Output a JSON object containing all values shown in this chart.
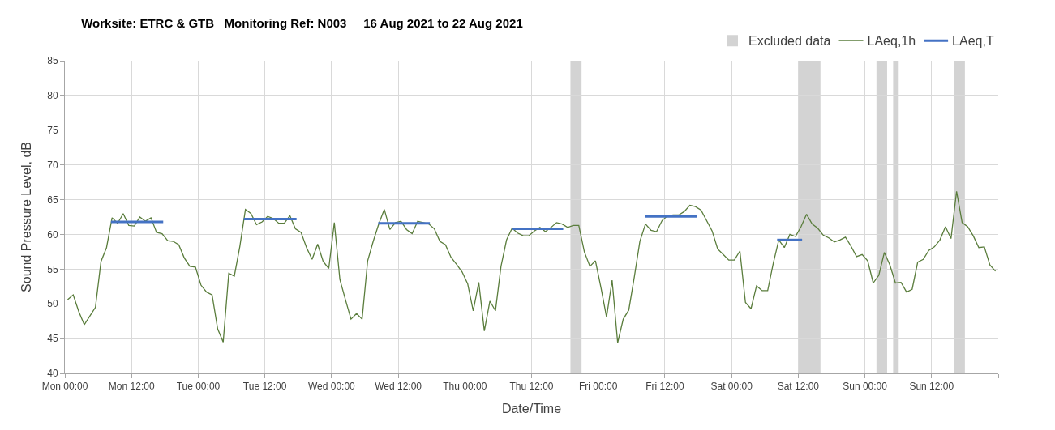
{
  "chart_data": {
    "type": "line",
    "title": "Worksite: ETRC & GTB   Monitoring Ref: N003     16 Aug 2021 to 22 Aug 2021",
    "xlabel": "Date/Time",
    "ylabel": "Sound Pressure Level, dB",
    "xlim": [
      "2021-08-16T00:00",
      "2021-08-23T00:00"
    ],
    "ylim": [
      40,
      85
    ],
    "xticks": [
      {
        "value": "2021-08-16T00:00",
        "label": "Mon 00:00"
      },
      {
        "value": "2021-08-16T12:00",
        "label": "Mon 12:00"
      },
      {
        "value": "2021-08-17T00:00",
        "label": "Tue 00:00"
      },
      {
        "value": "2021-08-17T12:00",
        "label": "Tue 12:00"
      },
      {
        "value": "2021-08-18T00:00",
        "label": "Wed 00:00"
      },
      {
        "value": "2021-08-18T12:00",
        "label": "Wed 12:00"
      },
      {
        "value": "2021-08-19T00:00",
        "label": "Thu 00:00"
      },
      {
        "value": "2021-08-19T12:00",
        "label": "Thu 12:00"
      },
      {
        "value": "2021-08-20T00:00",
        "label": "Fri 00:00"
      },
      {
        "value": "2021-08-20T12:00",
        "label": "Fri 12:00"
      },
      {
        "value": "2021-08-21T00:00",
        "label": "Sat 00:00"
      },
      {
        "value": "2021-08-21T12:00",
        "label": "Sat 12:00"
      },
      {
        "value": "2021-08-22T00:00",
        "label": "Sun 00:00"
      },
      {
        "value": "2021-08-22T12:00",
        "label": "Sun 12:00"
      },
      {
        "value": "2021-08-23T00:00",
        "label": null
      }
    ],
    "yticks": [
      40,
      45,
      50,
      55,
      60,
      65,
      70,
      75,
      80,
      85
    ],
    "grid": true,
    "legend": "top right",
    "marker": "none",
    "line_style": "solid",
    "bands": [
      {
        "axis": "x",
        "from": "2021-08-19T19:00",
        "to": "2021-08-19T21:00",
        "label": "Excluded data",
        "color": "#d3d3d3"
      },
      {
        "axis": "x",
        "from": "2021-08-21T12:00",
        "to": "2021-08-21T16:00",
        "color": "#d3d3d3"
      },
      {
        "axis": "x",
        "from": "2021-08-22T02:05",
        "to": "2021-08-22T04:00",
        "color": "#d3d3d3"
      },
      {
        "axis": "x",
        "from": "2021-08-22T05:05",
        "to": "2021-08-22T06:05",
        "color": "#d3d3d3"
      },
      {
        "axis": "x",
        "from": "2021-08-22T16:05",
        "to": "2021-08-22T18:00",
        "color": "#d3d3d3"
      }
    ],
    "series": [
      {
        "name": "LAeq,1h",
        "color": "#5a7d3c",
        "x": [
          "2021-08-16T00:30",
          "2021-08-16T01:30",
          "2021-08-16T02:30",
          "2021-08-16T03:30",
          "2021-08-16T05:30",
          "2021-08-16T06:30",
          "2021-08-16T07:30",
          "2021-08-16T08:30",
          "2021-08-16T09:30",
          "2021-08-16T10:30",
          "2021-08-16T11:30",
          "2021-08-16T12:30",
          "2021-08-16T13:30",
          "2021-08-16T14:30",
          "2021-08-16T15:30",
          "2021-08-16T16:30",
          "2021-08-16T17:30",
          "2021-08-16T18:30",
          "2021-08-16T19:30",
          "2021-08-16T20:30",
          "2021-08-16T21:30",
          "2021-08-16T22:30",
          "2021-08-16T23:30",
          "2021-08-17T00:30",
          "2021-08-17T01:30",
          "2021-08-17T02:30",
          "2021-08-17T03:30",
          "2021-08-17T04:30",
          "2021-08-17T05:30",
          "2021-08-17T06:30",
          "2021-08-17T07:30",
          "2021-08-17T08:30",
          "2021-08-17T09:30",
          "2021-08-17T10:30",
          "2021-08-17T11:30",
          "2021-08-17T12:30",
          "2021-08-17T13:30",
          "2021-08-17T14:30",
          "2021-08-17T15:30",
          "2021-08-17T16:30",
          "2021-08-17T17:30",
          "2021-08-17T18:30",
          "2021-08-17T19:30",
          "2021-08-17T20:30",
          "2021-08-17T21:30",
          "2021-08-17T22:30",
          "2021-08-17T23:30",
          "2021-08-18T00:30",
          "2021-08-18T01:30",
          "2021-08-18T02:30",
          "2021-08-18T03:30",
          "2021-08-18T04:30",
          "2021-08-18T05:30",
          "2021-08-18T06:30",
          "2021-08-18T07:30",
          "2021-08-18T08:30",
          "2021-08-18T09:30",
          "2021-08-18T10:30",
          "2021-08-18T11:30",
          "2021-08-18T12:30",
          "2021-08-18T13:30",
          "2021-08-18T14:30",
          "2021-08-18T15:30",
          "2021-08-18T16:30",
          "2021-08-18T17:30",
          "2021-08-18T18:30",
          "2021-08-18T19:30",
          "2021-08-18T20:30",
          "2021-08-18T21:30",
          "2021-08-18T22:30",
          "2021-08-18T23:30",
          "2021-08-19T00:30",
          "2021-08-19T01:30",
          "2021-08-19T02:30",
          "2021-08-19T03:30",
          "2021-08-19T04:30",
          "2021-08-19T05:30",
          "2021-08-19T06:30",
          "2021-08-19T07:30",
          "2021-08-19T08:30",
          "2021-08-19T09:30",
          "2021-08-19T10:30",
          "2021-08-19T11:30",
          "2021-08-19T12:30",
          "2021-08-19T13:30",
          "2021-08-19T14:30",
          "2021-08-19T15:30",
          "2021-08-19T16:30",
          "2021-08-19T17:30",
          "2021-08-19T18:30",
          "2021-08-19T19:30",
          "2021-08-19T20:30",
          "2021-08-19T21:30",
          "2021-08-19T22:30",
          "2021-08-19T23:30",
          "2021-08-20T00:30",
          "2021-08-20T01:30",
          "2021-08-20T02:30",
          "2021-08-20T03:30",
          "2021-08-20T04:30",
          "2021-08-20T05:30",
          "2021-08-20T06:30",
          "2021-08-20T07:30",
          "2021-08-20T08:30",
          "2021-08-20T09:30",
          "2021-08-20T10:30",
          "2021-08-20T11:30",
          "2021-08-20T12:30",
          "2021-08-20T13:30",
          "2021-08-20T14:30",
          "2021-08-20T15:30",
          "2021-08-20T16:30",
          "2021-08-20T17:30",
          "2021-08-20T18:30",
          "2021-08-20T19:30",
          "2021-08-20T20:30",
          "2021-08-20T21:30",
          "2021-08-20T22:30",
          "2021-08-20T23:30",
          "2021-08-21T00:30",
          "2021-08-21T01:30",
          "2021-08-21T02:30",
          "2021-08-21T03:30",
          "2021-08-21T04:30",
          "2021-08-21T05:30",
          "2021-08-21T06:30",
          "2021-08-21T07:30",
          "2021-08-21T08:30",
          "2021-08-21T09:30",
          "2021-08-21T10:30",
          "2021-08-21T11:30",
          "2021-08-21T12:30",
          "2021-08-21T13:30",
          "2021-08-21T14:30",
          "2021-08-21T15:30",
          "2021-08-21T16:30",
          "2021-08-21T17:30",
          "2021-08-21T18:30",
          "2021-08-21T19:30",
          "2021-08-21T20:30",
          "2021-08-21T21:30",
          "2021-08-21T22:30",
          "2021-08-21T23:30",
          "2021-08-22T00:30",
          "2021-08-22T01:30",
          "2021-08-22T02:30",
          "2021-08-22T03:30",
          "2021-08-22T04:30",
          "2021-08-22T05:30",
          "2021-08-22T06:30",
          "2021-08-22T07:30",
          "2021-08-22T08:30",
          "2021-08-22T09:30",
          "2021-08-22T10:30",
          "2021-08-22T11:30",
          "2021-08-22T12:30",
          "2021-08-22T13:30",
          "2021-08-22T14:30",
          "2021-08-22T15:30",
          "2021-08-22T16:30",
          "2021-08-22T17:30",
          "2021-08-22T18:30",
          "2021-08-22T19:30",
          "2021-08-22T20:30",
          "2021-08-22T21:30",
          "2021-08-22T22:30",
          "2021-08-22T23:30"
        ],
        "values": [
          50.6,
          51.3,
          48.9,
          47.0,
          49.5,
          56.1,
          58.1,
          62.4,
          61.6,
          63.0,
          61.3,
          61.2,
          62.5,
          61.9,
          62.4,
          60.3,
          60.1,
          59.1,
          59.0,
          58.5,
          56.6,
          55.4,
          55.3,
          52.7,
          51.7,
          51.3,
          46.4,
          44.5,
          54.4,
          54.0,
          58.3,
          63.6,
          63.0,
          61.4,
          61.8,
          62.6,
          62.3,
          61.6,
          61.6,
          62.7,
          60.8,
          60.3,
          58.1,
          56.4,
          58.6,
          56.1,
          55.1,
          61.7,
          53.5,
          50.6,
          47.8,
          48.6,
          47.8,
          56.2,
          59.0,
          61.5,
          63.6,
          60.7,
          61.7,
          61.9,
          60.7,
          60.1,
          61.9,
          61.7,
          61.5,
          60.8,
          59.0,
          58.5,
          56.7,
          55.7,
          54.6,
          52.9,
          49.0,
          53.1,
          46.1,
          50.4,
          49.0,
          55.4,
          59.2,
          60.9,
          60.2,
          59.8,
          59.8,
          60.5,
          61.0,
          60.4,
          61.0,
          61.7,
          61.5,
          61.0,
          61.3,
          61.3,
          57.5,
          55.4,
          56.2,
          52.3,
          48.1,
          53.4,
          44.4,
          47.8,
          49.1,
          53.9,
          59.0,
          61.5,
          60.6,
          60.4,
          62.0,
          62.7,
          62.8,
          62.8,
          63.3,
          64.2,
          64.0,
          63.5,
          62.0,
          60.5,
          57.9,
          57.1,
          56.3,
          56.3,
          57.6,
          50.2,
          49.3,
          52.6,
          51.9,
          51.9,
          55.8,
          59.2,
          58.1,
          60.0,
          59.7,
          61.1,
          62.9,
          61.5,
          60.9,
          59.9,
          59.5,
          58.9,
          59.2,
          59.6,
          58.3,
          56.8,
          57.1,
          56.2,
          53.0,
          54.1,
          57.4,
          55.6,
          53.0,
          53.1,
          51.7,
          52.1,
          56.0,
          56.4,
          57.7,
          58.2,
          59.2,
          61.1,
          59.4,
          66.2,
          61.7,
          61.1,
          59.8,
          58.1,
          58.2,
          55.6,
          54.7
        ]
      },
      {
        "name": "LAeq,T",
        "color": "#4472c4",
        "x": [
          "2021-08-16T08:18",
          "2021-08-16T17:42",
          null,
          "2021-08-17T08:12",
          "2021-08-17T17:42",
          null,
          "2021-08-18T08:24",
          "2021-08-18T17:42",
          null,
          "2021-08-19T08:36",
          "2021-08-19T17:42",
          null,
          "2021-08-20T08:24",
          "2021-08-20T17:48",
          null,
          "2021-08-21T08:12",
          "2021-08-21T12:42"
        ],
        "values": [
          61.8,
          61.8,
          null,
          62.2,
          62.2,
          null,
          61.6,
          61.6,
          null,
          60.8,
          60.8,
          null,
          62.6,
          62.6,
          null,
          59.2,
          59.2
        ]
      }
    ]
  }
}
